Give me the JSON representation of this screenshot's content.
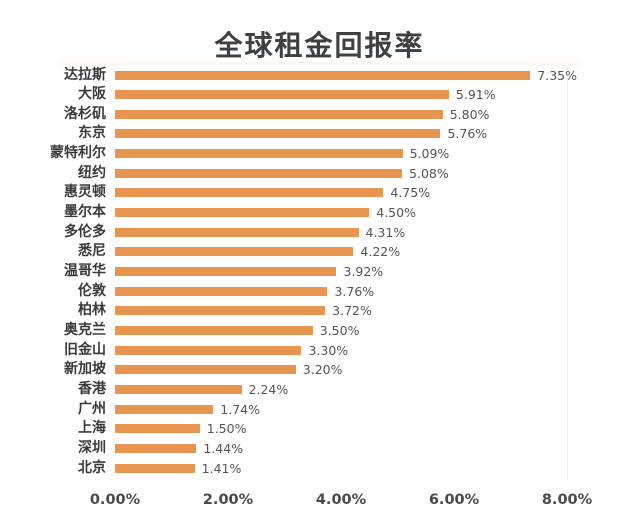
{
  "title": "全球租金回报率",
  "colors": {
    "bar": "#e8964f",
    "text": "#404040",
    "grid": "#ececec"
  },
  "chart_data": {
    "type": "bar",
    "orientation": "horizontal",
    "title": "全球租金回报率",
    "xlabel": "",
    "ylabel": "",
    "xlim": [
      0,
      8
    ],
    "x_ticks": [
      "0.00%",
      "2.00%",
      "4.00%",
      "6.00%",
      "8.00%"
    ],
    "grid": false,
    "legend": null,
    "categories": [
      "达拉斯",
      "大阪",
      "洛杉矶",
      "东京",
      "蒙特利尔",
      "纽约",
      "惠灵顿",
      "墨尔本",
      "多伦多",
      "悉尼",
      "温哥华",
      "伦敦",
      "柏林",
      "奥克兰",
      "旧金山",
      "新加坡",
      "香港",
      "广州",
      "上海",
      "深圳",
      "北京"
    ],
    "values": [
      7.35,
      5.91,
      5.8,
      5.76,
      5.09,
      5.08,
      4.75,
      4.5,
      4.31,
      4.22,
      3.92,
      3.76,
      3.72,
      3.5,
      3.3,
      3.2,
      2.24,
      1.74,
      1.5,
      1.44,
      1.41
    ],
    "value_labels": [
      "7.35%",
      "5.91%",
      "5.80%",
      "5.76%",
      "5.09%",
      "5.08%",
      "4.75%",
      "4.50%",
      "4.31%",
      "4.22%",
      "3.92%",
      "3.76%",
      "3.72%",
      "3.50%",
      "3.30%",
      "3.20%",
      "2.24%",
      "1.74%",
      "1.50%",
      "1.44%",
      "1.41%"
    ]
  }
}
